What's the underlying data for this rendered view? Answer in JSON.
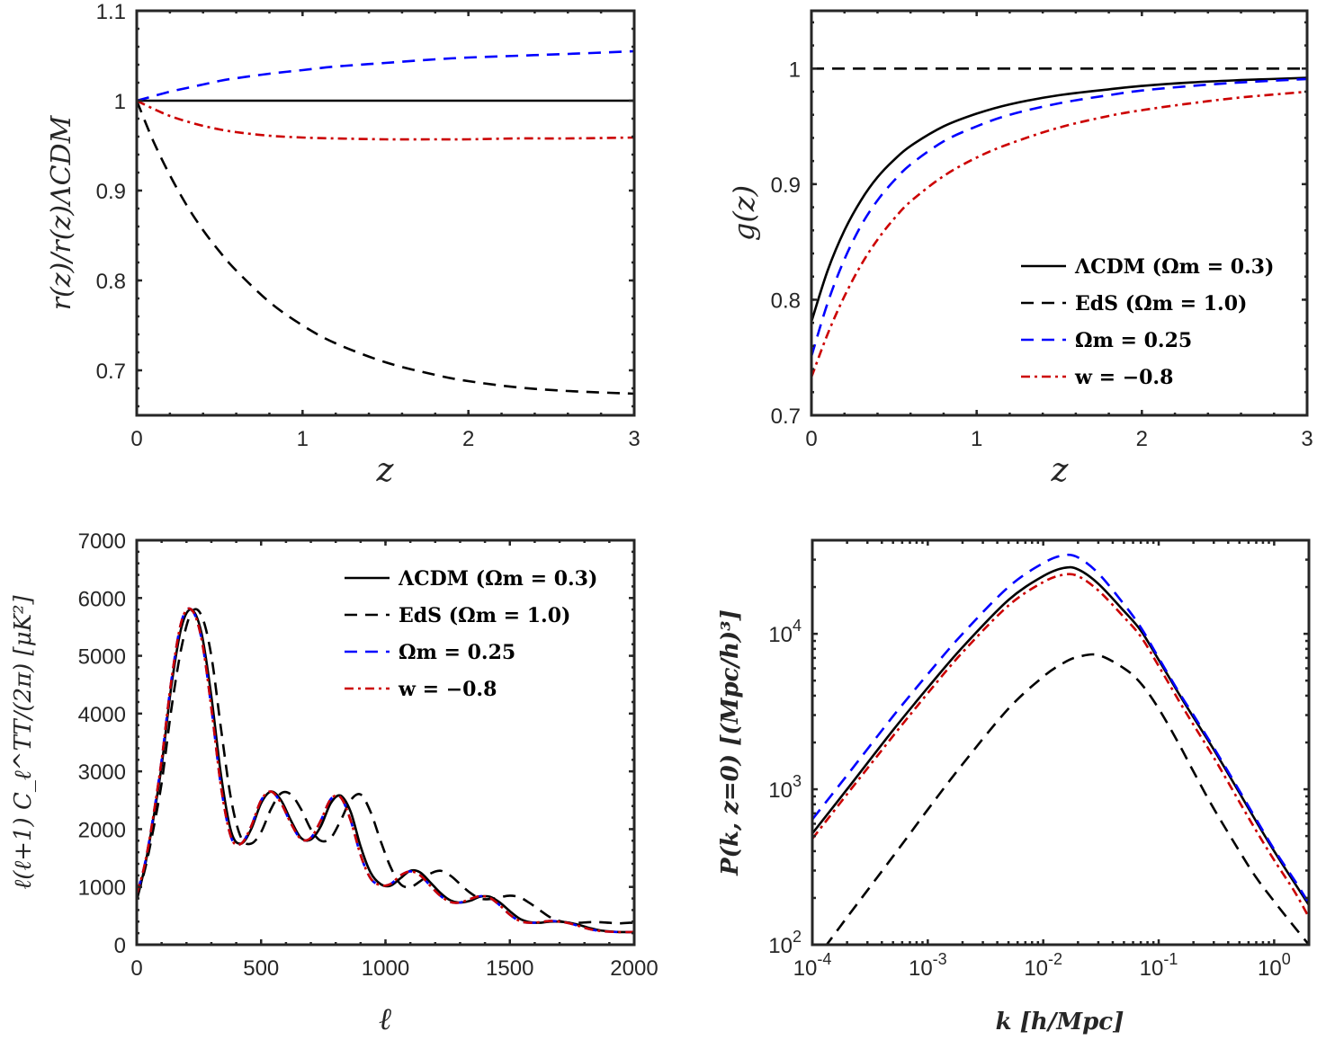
{
  "series_styles": {
    "lcdm": {
      "color": "#000000",
      "dash": "solid"
    },
    "eds": {
      "color": "#000000",
      "dash": "dashed"
    },
    "om025": {
      "color": "#0000ff",
      "dash": "dashed"
    },
    "w08": {
      "color": "#cc0000",
      "dash": "dashdot"
    }
  },
  "legend_labels": {
    "lcdm": "ΛCDM (Ωm = 0.3)",
    "eds": "EdS (Ωm = 1.0)",
    "om025": "Ωm = 0.25",
    "w08": "w = −0.8"
  },
  "chart_data": [
    {
      "id": "distance_ratio",
      "type": "line",
      "title": "",
      "xlabel": "z",
      "ylabel": "r(z)/r(z)ΛCDM",
      "xlim": [
        0,
        3
      ],
      "ylim": [
        0.65,
        1.1
      ],
      "xticks": [
        0,
        1,
        2,
        3
      ],
      "xtick_labels": [
        "0",
        "1",
        "2",
        "3"
      ],
      "yticks": [
        0.7,
        0.8,
        0.9,
        1.0,
        1.1
      ],
      "ytick_labels": [
        "0.7",
        "0.8",
        "0.9",
        "1",
        "1.1"
      ],
      "grid": false,
      "legend": null,
      "x": [
        0,
        0.1,
        0.2,
        0.3,
        0.4,
        0.5,
        0.6,
        0.8,
        1.0,
        1.2,
        1.5,
        1.8,
        2.0,
        2.3,
        2.6,
        3.0
      ],
      "series": [
        {
          "key": "lcdm",
          "name": "ΛCDM (Ωm = 0.3)",
          "values": [
            1,
            1,
            1,
            1,
            1,
            1,
            1,
            1,
            1,
            1,
            1,
            1,
            1,
            1,
            1,
            1
          ]
        },
        {
          "key": "eds",
          "name": "EdS (Ωm = 1.0)",
          "values": [
            1.0,
            0.955,
            0.917,
            0.884,
            0.856,
            0.832,
            0.811,
            0.776,
            0.75,
            0.73,
            0.709,
            0.695,
            0.688,
            0.681,
            0.677,
            0.674
          ]
        },
        {
          "key": "om025",
          "name": "Ωm = 0.25",
          "values": [
            1.0,
            1.005,
            1.01,
            1.014,
            1.018,
            1.022,
            1.025,
            1.03,
            1.034,
            1.038,
            1.042,
            1.046,
            1.048,
            1.05,
            1.052,
            1.055
          ]
        },
        {
          "key": "w08",
          "name": "w = −0.8",
          "values": [
            1.0,
            0.991,
            0.983,
            0.977,
            0.972,
            0.968,
            0.965,
            0.961,
            0.959,
            0.958,
            0.957,
            0.957,
            0.957,
            0.958,
            0.958,
            0.959
          ]
        }
      ]
    },
    {
      "id": "growth",
      "type": "line",
      "title": "",
      "xlabel": "z",
      "ylabel": "g(z)",
      "xlim": [
        0,
        3
      ],
      "ylim": [
        0.7,
        1.05
      ],
      "xticks": [
        0,
        1,
        2,
        3
      ],
      "xtick_labels": [
        "0",
        "1",
        "2",
        "3"
      ],
      "yticks": [
        0.7,
        0.8,
        0.9,
        1.0
      ],
      "ytick_labels": [
        "0.7",
        "0.8",
        "0.9",
        "1"
      ],
      "grid": false,
      "legend": "lower-right",
      "x": [
        0,
        0.1,
        0.2,
        0.3,
        0.4,
        0.5,
        0.6,
        0.8,
        1.0,
        1.2,
        1.5,
        1.8,
        2.0,
        2.3,
        2.6,
        3.0
      ],
      "series": [
        {
          "key": "lcdm",
          "name": "ΛCDM (Ωm = 0.3)",
          "values": [
            0.781,
            0.826,
            0.86,
            0.886,
            0.906,
            0.921,
            0.933,
            0.95,
            0.961,
            0.969,
            0.977,
            0.982,
            0.985,
            0.988,
            0.99,
            0.992
          ]
        },
        {
          "key": "eds",
          "name": "EdS (Ωm = 1.0)",
          "values": [
            1,
            1,
            1,
            1,
            1,
            1,
            1,
            1,
            1,
            1,
            1,
            1,
            1,
            1,
            1,
            1
          ]
        },
        {
          "key": "om025",
          "name": "Ωm = 0.25",
          "values": [
            0.751,
            0.798,
            0.835,
            0.864,
            0.886,
            0.903,
            0.917,
            0.937,
            0.95,
            0.96,
            0.97,
            0.977,
            0.981,
            0.985,
            0.988,
            0.991
          ]
        },
        {
          "key": "w08",
          "name": "w = −0.8",
          "values": [
            0.733,
            0.771,
            0.803,
            0.83,
            0.852,
            0.87,
            0.885,
            0.907,
            0.923,
            0.935,
            0.949,
            0.959,
            0.964,
            0.97,
            0.975,
            0.98
          ]
        }
      ]
    },
    {
      "id": "cmb_tt",
      "type": "line",
      "title": "",
      "xlabel": "ℓ",
      "ylabel": "ℓ(ℓ+1) C_ℓ^TT/(2π) [μK²]",
      "xlim": [
        0,
        2000
      ],
      "ylim": [
        0,
        7000
      ],
      "xticks": [
        0,
        500,
        1000,
        1500,
        2000
      ],
      "xtick_labels": [
        "0",
        "500",
        "1000",
        "1500",
        "2000"
      ],
      "yticks": [
        0,
        1000,
        2000,
        3000,
        4000,
        5000,
        6000,
        7000
      ],
      "ytick_labels": [
        "0",
        "1000",
        "2000",
        "3000",
        "4000",
        "5000",
        "6000",
        "7000"
      ],
      "grid": false,
      "legend": "top-right",
      "x": [
        2,
        30,
        60,
        100,
        140,
        180,
        220,
        260,
        300,
        340,
        380,
        420,
        460,
        500,
        540,
        580,
        620,
        660,
        700,
        740,
        780,
        820,
        860,
        900,
        940,
        980,
        1020,
        1060,
        1100,
        1140,
        1180,
        1220,
        1260,
        1300,
        1340,
        1380,
        1420,
        1460,
        1500,
        1540,
        1580,
        1620,
        1660,
        1700,
        1740,
        1780,
        1820,
        1860,
        1900,
        1940,
        1980,
        2000
      ],
      "series": [
        {
          "key": "lcdm",
          "name": "ΛCDM (Ωm = 0.3)",
          "values": [
            800,
            1300,
            2000,
            3100,
            4500,
            5500,
            5800,
            5400,
            4300,
            2900,
            1950,
            1750,
            2000,
            2450,
            2650,
            2500,
            2150,
            1850,
            1820,
            2050,
            2450,
            2580,
            2300,
            1700,
            1250,
            1050,
            1020,
            1150,
            1280,
            1250,
            1080,
            900,
            770,
            730,
            760,
            830,
            830,
            730,
            580,
            450,
            390,
            380,
            400,
            400,
            380,
            340,
            290,
            250,
            230,
            220,
            220,
            220
          ]
        },
        {
          "key": "eds",
          "name": "EdS (Ωm = 1.0)",
          "values": [
            850,
            1250,
            1850,
            2800,
            4100,
            5150,
            5750,
            5700,
            5000,
            3700,
            2500,
            1850,
            1750,
            1950,
            2350,
            2620,
            2600,
            2350,
            2000,
            1800,
            1850,
            2150,
            2500,
            2600,
            2300,
            1800,
            1350,
            1050,
            1000,
            1100,
            1230,
            1280,
            1200,
            1050,
            900,
            800,
            790,
            820,
            850,
            820,
            720,
            600,
            480,
            410,
            380,
            380,
            390,
            390,
            380,
            370,
            380,
            380
          ]
        },
        {
          "key": "om025",
          "name": "Ωm = 0.25",
          "values": [
            900,
            1350,
            2050,
            3200,
            4600,
            5600,
            5800,
            5300,
            4100,
            2700,
            1850,
            1750,
            2050,
            2500,
            2650,
            2450,
            2100,
            1830,
            1850,
            2150,
            2520,
            2550,
            2150,
            1550,
            1150,
            1030,
            1050,
            1200,
            1270,
            1200,
            1020,
            850,
            740,
            730,
            790,
            840,
            810,
            680,
            520,
            410,
            380,
            390,
            410,
            400,
            370,
            320,
            270,
            240,
            225,
            220,
            220,
            220
          ]
        },
        {
          "key": "w08",
          "name": "w = −0.8",
          "values": [
            900,
            1350,
            2050,
            3200,
            4600,
            5600,
            5800,
            5300,
            4100,
            2700,
            1850,
            1750,
            2050,
            2500,
            2650,
            2450,
            2100,
            1830,
            1850,
            2150,
            2520,
            2550,
            2150,
            1550,
            1150,
            1030,
            1050,
            1200,
            1270,
            1200,
            1020,
            850,
            740,
            730,
            790,
            840,
            810,
            680,
            520,
            410,
            380,
            390,
            410,
            400,
            370,
            320,
            270,
            240,
            225,
            220,
            220,
            220
          ]
        }
      ]
    },
    {
      "id": "matter_power",
      "type": "line",
      "title": "",
      "xlabel": "k [h/Mpc]",
      "ylabel": "P(k, z=0) [(Mpc/h)³]",
      "xscale": "log",
      "yscale": "log",
      "xlim": [
        0.0001,
        2
      ],
      "ylim": [
        100,
        40000
      ],
      "xticks": [
        0.0001,
        0.001,
        0.01,
        0.1,
        1
      ],
      "xtick_labels": [
        "10^-4",
        "10^-3",
        "10^-2",
        "10^-1",
        "10^0"
      ],
      "yticks": [
        100,
        1000,
        10000
      ],
      "ytick_labels": [
        "10^2",
        "10^3",
        "10^4"
      ],
      "grid": false,
      "legend": null,
      "x": [
        0.0001,
        0.0002,
        0.0005,
        0.001,
        0.002,
        0.005,
        0.01,
        0.015,
        0.02,
        0.03,
        0.05,
        0.07,
        0.1,
        0.15,
        0.2,
        0.3,
        0.5,
        0.7,
        1.0,
        1.5,
        2.0
      ],
      "series": [
        {
          "key": "lcdm",
          "name": "ΛCDM (Ωm = 0.3)",
          "values": [
            520,
            1000,
            2400,
            4500,
            8200,
            16500,
            23500,
            26500,
            26000,
            21000,
            14000,
            10500,
            6800,
            4100,
            2900,
            1800,
            950,
            620,
            400,
            250,
            180
          ]
        },
        {
          "key": "eds",
          "name": "EdS (Ωm = 1.0)",
          "values": [
            75,
            150,
            370,
            740,
            1450,
            3300,
            5300,
            6500,
            7100,
            7300,
            6000,
            4800,
            3300,
            1950,
            1300,
            750,
            400,
            270,
            190,
            130,
            100
          ]
        },
        {
          "key": "om025",
          "name": "Ωm = 0.25",
          "values": [
            640,
            1230,
            2950,
            5500,
            10000,
            20000,
            28500,
            32000,
            31000,
            24500,
            15500,
            11000,
            7000,
            4200,
            3000,
            1850,
            980,
            640,
            410,
            260,
            185
          ]
        },
        {
          "key": "w08",
          "name": "w = −0.8",
          "values": [
            480,
            930,
            2200,
            4150,
            7600,
            15200,
            21500,
            24000,
            23500,
            19000,
            12800,
            9600,
            6200,
            3700,
            2600,
            1600,
            830,
            540,
            350,
            220,
            150
          ]
        }
      ]
    }
  ]
}
